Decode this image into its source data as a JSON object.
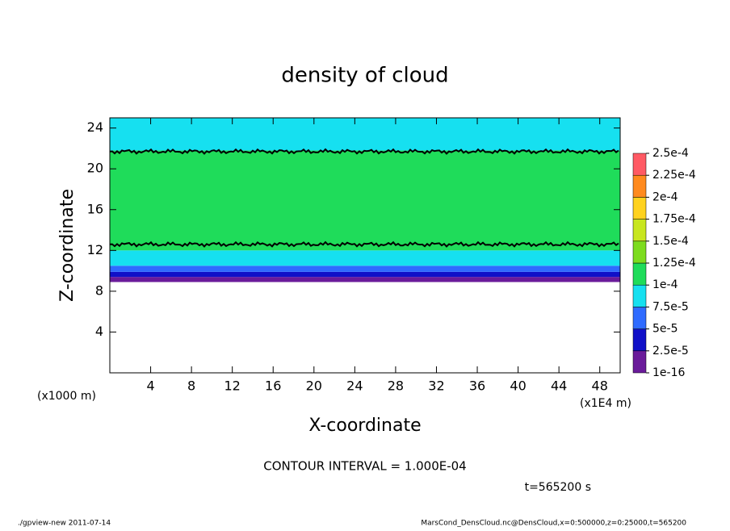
{
  "chart_data": {
    "type": "heatmap",
    "title": "density of cloud",
    "xlabel": "X-coordinate",
    "ylabel": "Z-coordinate",
    "x_unit_left": "(x1000 m)",
    "x_unit_right": "(x1E4 m)",
    "xlim": [
      0,
      50
    ],
    "ylim": [
      0,
      25
    ],
    "xticks": [
      4,
      8,
      12,
      16,
      20,
      24,
      28,
      32,
      36,
      40,
      44,
      48
    ],
    "yticks": [
      4,
      8,
      12,
      16,
      20,
      24
    ],
    "band_edges": [
      8.9,
      9.4,
      9.9,
      10.5,
      12,
      21.8,
      25
    ],
    "values": [
      1.5e-05,
      4e-05,
      6e-05,
      9e-05,
      0.00011,
      9e-05
    ],
    "contour_lines": [
      12.6,
      21.7
    ],
    "levels": [
      {
        "value": 1e-16,
        "label": "1e-16"
      },
      {
        "value": 2.5e-05,
        "label": "2.5e-5"
      },
      {
        "value": 5e-05,
        "label": "5e-5"
      },
      {
        "value": 7.5e-05,
        "label": "7.5e-5"
      },
      {
        "value": 0.0001,
        "label": "1e-4"
      },
      {
        "value": 0.000125,
        "label": "1.25e-4"
      },
      {
        "value": 0.00015,
        "label": "1.5e-4"
      },
      {
        "value": 0.000175,
        "label": "1.75e-4"
      },
      {
        "value": 0.0002,
        "label": "2e-4"
      },
      {
        "value": 0.000225,
        "label": "2.25e-4"
      },
      {
        "value": 0.00025,
        "label": "2.5e-4"
      }
    ],
    "colors": [
      "#6a1b9a",
      "#1010c8",
      "#2f6bff",
      "#16e0f0",
      "#1fdc5a",
      "#7ddc1e",
      "#c8e61e",
      "#ffd21e",
      "#ff8a1e",
      "#ff5a64"
    ],
    "contour_interval": "CONTOUR INTERVAL = 1.000E-04",
    "time": "t=565200 s",
    "footer_left": "./gpview-new  2011-07-14",
    "footer_right": "MarsCond_DensCloud.nc@DensCloud,x=0:500000,z=0:25000,t=565200"
  }
}
